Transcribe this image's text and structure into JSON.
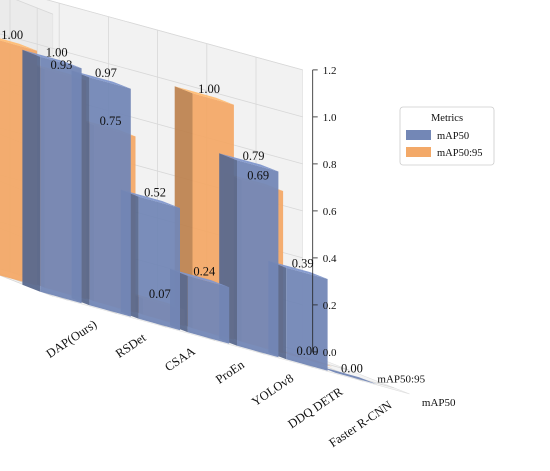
{
  "chart_data": {
    "type": "bar",
    "categories": [
      "DAP(Ours)",
      "RSDet",
      "CSAA",
      "ProEn",
      "YOLOv8",
      "DDQ DETR",
      "Faster R-CNN"
    ],
    "depth_labels": [
      "mAP50:95",
      "mAP50"
    ],
    "series": [
      {
        "name": "mAP50",
        "values": [
          1.0,
          0.97,
          0.52,
          0.24,
          0.79,
          0.39,
          0.0
        ],
        "labels": [
          "1.00",
          "0.97",
          "0.52",
          "0.24",
          "0.79",
          "0.39",
          "0.00"
        ]
      },
      {
        "name": "mAP50:95",
        "values": [
          1.0,
          0.93,
          0.75,
          0.07,
          1.0,
          0.69,
          0.0
        ],
        "labels": [
          "1.00",
          "0.93",
          "0.75",
          "0.07",
          "1.00",
          "0.69",
          "0.00"
        ]
      }
    ],
    "zlim": [
      0,
      1.2
    ],
    "z_ticks": [
      "0.0",
      "0.2",
      "0.4",
      "0.6",
      "0.8",
      "1.0",
      "1.2"
    ],
    "legend": {
      "title": "Metrics",
      "placement": "upper-right"
    },
    "grid": true,
    "colors": {
      "mAP50": "#7387b6",
      "mAP50:95": "#f3a968"
    }
  }
}
